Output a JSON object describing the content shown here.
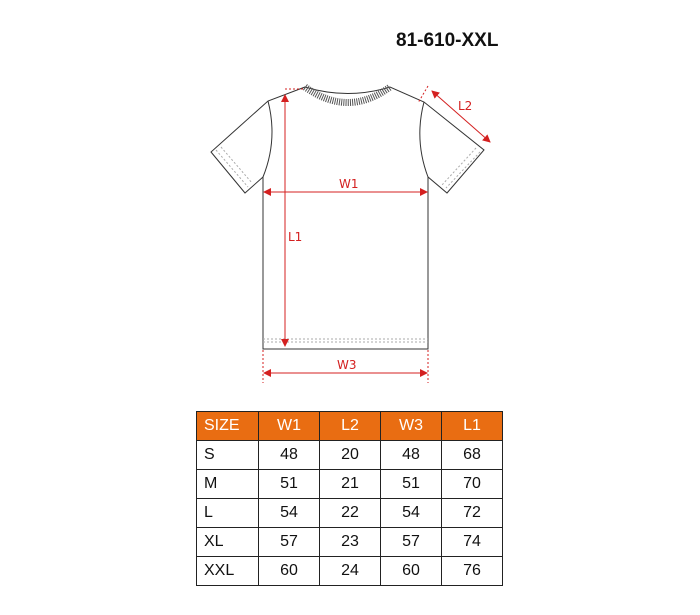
{
  "product_code": "81-610-XXL",
  "colors": {
    "accent": "#e96d12",
    "dimension": "#d42020"
  },
  "diagram": {
    "labels": {
      "w1": "W1",
      "l1": "L1",
      "l2": "L2",
      "w3": "W3"
    }
  },
  "size_table": {
    "headers": [
      "SIZE",
      "W1",
      "L2",
      "W3",
      "L1"
    ],
    "rows": [
      [
        "S",
        "48",
        "20",
        "48",
        "68"
      ],
      [
        "M",
        "51",
        "21",
        "51",
        "70"
      ],
      [
        "L",
        "54",
        "22",
        "54",
        "72"
      ],
      [
        "XL",
        "57",
        "23",
        "57",
        "74"
      ],
      [
        "XXL",
        "60",
        "24",
        "60",
        "76"
      ]
    ]
  }
}
